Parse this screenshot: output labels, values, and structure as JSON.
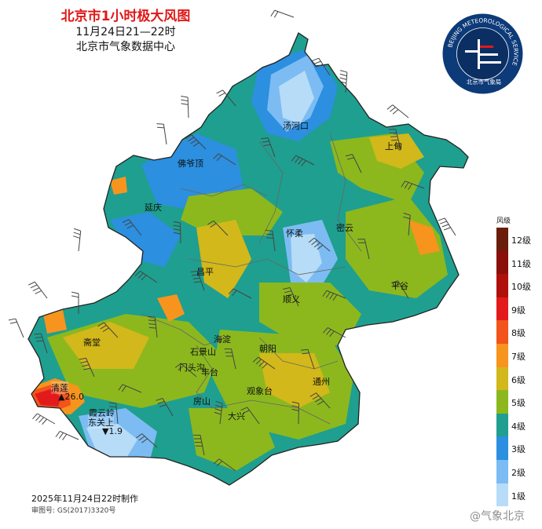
{
  "header": {
    "title": "北京市1小时极大风图",
    "time_range": "11月24日21—22时",
    "issuer": "北京市气象数据中心"
  },
  "logo": {
    "ring_text": "BEIJING METEOROLOGICAL SERVICE",
    "cn_name": "北京市气象局",
    "ring_color": "#0d3a78"
  },
  "legend": {
    "title": "风级",
    "levels": [
      {
        "label": "12级",
        "color": "#6b1d0b"
      },
      {
        "label": "11级",
        "color": "#8a0f0a"
      },
      {
        "label": "10级",
        "color": "#b0100c"
      },
      {
        "label": "9级",
        "color": "#e31a1c"
      },
      {
        "label": "8级",
        "color": "#f2541c"
      },
      {
        "label": "7级",
        "color": "#f7941d"
      },
      {
        "label": "6级",
        "color": "#d2b81a"
      },
      {
        "label": "5级",
        "color": "#8cb81e"
      },
      {
        "label": "4级",
        "color": "#1f9f8f"
      },
      {
        "label": "3级",
        "color": "#2c8fe0"
      },
      {
        "label": "2级",
        "color": "#7cbcf2"
      },
      {
        "label": "1级",
        "color": "#b7dcf8"
      }
    ]
  },
  "districts": [
    {
      "name": "汤河口"
    },
    {
      "name": "上甸"
    },
    {
      "name": "佛爷顶"
    },
    {
      "name": "延庆"
    },
    {
      "name": "怀柔"
    },
    {
      "name": "密云"
    },
    {
      "name": "昌平"
    },
    {
      "name": "平谷"
    },
    {
      "name": "顺义"
    },
    {
      "name": "海淀"
    },
    {
      "name": "朝阳"
    },
    {
      "name": "石景山"
    },
    {
      "name": "门头沟"
    },
    {
      "name": "丰台"
    },
    {
      "name": "斋堂"
    },
    {
      "name": "通州"
    },
    {
      "name": "观象台"
    },
    {
      "name": "房山"
    },
    {
      "name": "大兴"
    },
    {
      "name": "霞云岭"
    }
  ],
  "stations": {
    "max": {
      "name": "清莲",
      "value": "26.0",
      "marker": "▲"
    },
    "min": {
      "name": "东关上",
      "value": "1.9",
      "marker": "▼"
    }
  },
  "footer": {
    "made_time": "2025年11月24日22时制作",
    "map_review_no": "审图号: GS(2017)3320号",
    "watermark": "@气象北京"
  }
}
